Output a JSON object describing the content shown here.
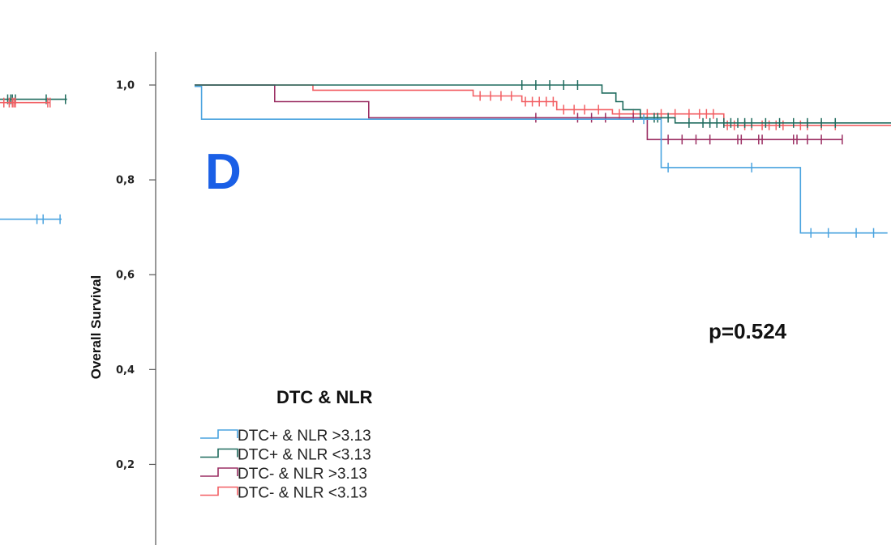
{
  "panel_letter": "D",
  "p_value_text": "p=0.524",
  "colors": {
    "dtc_pos_nlr_high": "#4aa3df",
    "dtc_pos_nlr_low": "#1f6b5e",
    "dtc_neg_nlr_high": "#9b2f63",
    "dtc_neg_nlr_low": "#f25f63",
    "partial_blue": "#4aa3df",
    "partial_green": "#1f6b5e",
    "partial_red": "#f25f63",
    "axis": "#555555",
    "panel_letter": "#1a5fe6"
  },
  "chart_data": {
    "type": "line",
    "step": true,
    "title": "",
    "xlabel": "",
    "ylabel": "Overall Survival",
    "xlim": [
      0,
      100
    ],
    "ylim": [
      0.03,
      1.07
    ],
    "y_ticks": [
      {
        "value": 1.0,
        "label": "1,0"
      },
      {
        "value": 0.8,
        "label": "0,8"
      },
      {
        "value": 0.6,
        "label": "0,6"
      },
      {
        "value": 0.4,
        "label": "0,4"
      },
      {
        "value": 0.2,
        "label": "0,2"
      }
    ],
    "legend": {
      "title": "DTC & NLR",
      "entries": [
        {
          "label": "DTC+ & NLR >3.13",
          "color_key": "dtc_pos_nlr_high"
        },
        {
          "label": "DTC+ & NLR <3.13",
          "color_key": "dtc_pos_nlr_low"
        },
        {
          "label": "DTC- & NLR >3.13",
          "color_key": "dtc_neg_nlr_high"
        },
        {
          "label": "DTC- & NLR <3.13",
          "color_key": "dtc_neg_nlr_low"
        }
      ]
    },
    "series": [
      {
        "name": "DTC- & NLR <3.13",
        "color_key": "dtc_neg_nlr_low",
        "steps": [
          [
            0,
            1.0
          ],
          [
            17,
            1.0
          ],
          [
            17,
            0.989
          ],
          [
            40,
            0.989
          ],
          [
            40,
            0.977
          ],
          [
            47,
            0.977
          ],
          [
            47,
            0.965
          ],
          [
            52,
            0.965
          ],
          [
            52,
            0.948
          ],
          [
            60,
            0.948
          ],
          [
            60,
            0.939
          ],
          [
            76,
            0.939
          ],
          [
            76,
            0.915
          ],
          [
            100,
            0.915
          ]
        ],
        "censor": [
          41,
          42.5,
          44,
          45.5,
          47.5,
          48.5,
          49.5,
          50.5,
          51.5,
          53,
          54.5,
          56,
          58,
          61,
          63,
          65,
          67,
          69,
          71,
          72.5,
          73.5,
          74.5,
          76.5,
          77.5,
          79,
          80,
          81.5,
          82.5,
          83.5,
          84.5,
          87,
          88,
          90,
          92
        ]
      },
      {
        "name": "DTC- & NLR >3.13",
        "color_key": "dtc_neg_nlr_high",
        "steps": [
          [
            0,
            1.0
          ],
          [
            11.5,
            1.0
          ],
          [
            11.5,
            0.965
          ],
          [
            25,
            0.965
          ],
          [
            25,
            0.931
          ],
          [
            65,
            0.931
          ],
          [
            65,
            0.885
          ],
          [
            93,
            0.885
          ]
        ],
        "censor": [
          49,
          55,
          57,
          59,
          63,
          68,
          70,
          72,
          74,
          78,
          78.5,
          81,
          81.5,
          86,
          86.5,
          88,
          90,
          93
        ]
      },
      {
        "name": "DTC+ & NLR <3.13",
        "color_key": "dtc_pos_nlr_low",
        "steps": [
          [
            0,
            1.0
          ],
          [
            58.5,
            1.0
          ],
          [
            58.5,
            0.983
          ],
          [
            60.5,
            0.983
          ],
          [
            60.5,
            0.965
          ],
          [
            61.5,
            0.965
          ],
          [
            61.5,
            0.948
          ],
          [
            64,
            0.948
          ],
          [
            64,
            0.931
          ],
          [
            69,
            0.931
          ],
          [
            69,
            0.92
          ],
          [
            100,
            0.92
          ]
        ],
        "censor": [
          47,
          49,
          51,
          53,
          55,
          66,
          66.5,
          68,
          71,
          73,
          74,
          75,
          76,
          77,
          78,
          79,
          80,
          82,
          84,
          86,
          88,
          90,
          92
        ]
      },
      {
        "name": "DTC+ & NLR >3.13",
        "color_key": "dtc_pos_nlr_high",
        "steps": [
          [
            0,
            0.997
          ],
          [
            1,
            0.997
          ],
          [
            1,
            0.928
          ],
          [
            67,
            0.928
          ],
          [
            67,
            0.826
          ],
          [
            87,
            0.826
          ],
          [
            87,
            0.688
          ],
          [
            99.5,
            0.688
          ]
        ],
        "censor": [
          64.5,
          68,
          80,
          88.5,
          91,
          95,
          97.5
        ]
      }
    ],
    "partial_left_panel": [
      {
        "color_key": "partial_green",
        "y": 0.97,
        "x_end": 87,
        "censor": [
          10,
          14,
          16,
          20,
          60,
          85
        ]
      },
      {
        "color_key": "partial_red",
        "y": 0.963,
        "x_end": 65,
        "censor": [
          5,
          12,
          16,
          18,
          20,
          62,
          65
        ]
      },
      {
        "color_key": "partial_blue",
        "y": 0.717,
        "x_end": 80,
        "censor": [
          48,
          56,
          78
        ]
      }
    ]
  }
}
